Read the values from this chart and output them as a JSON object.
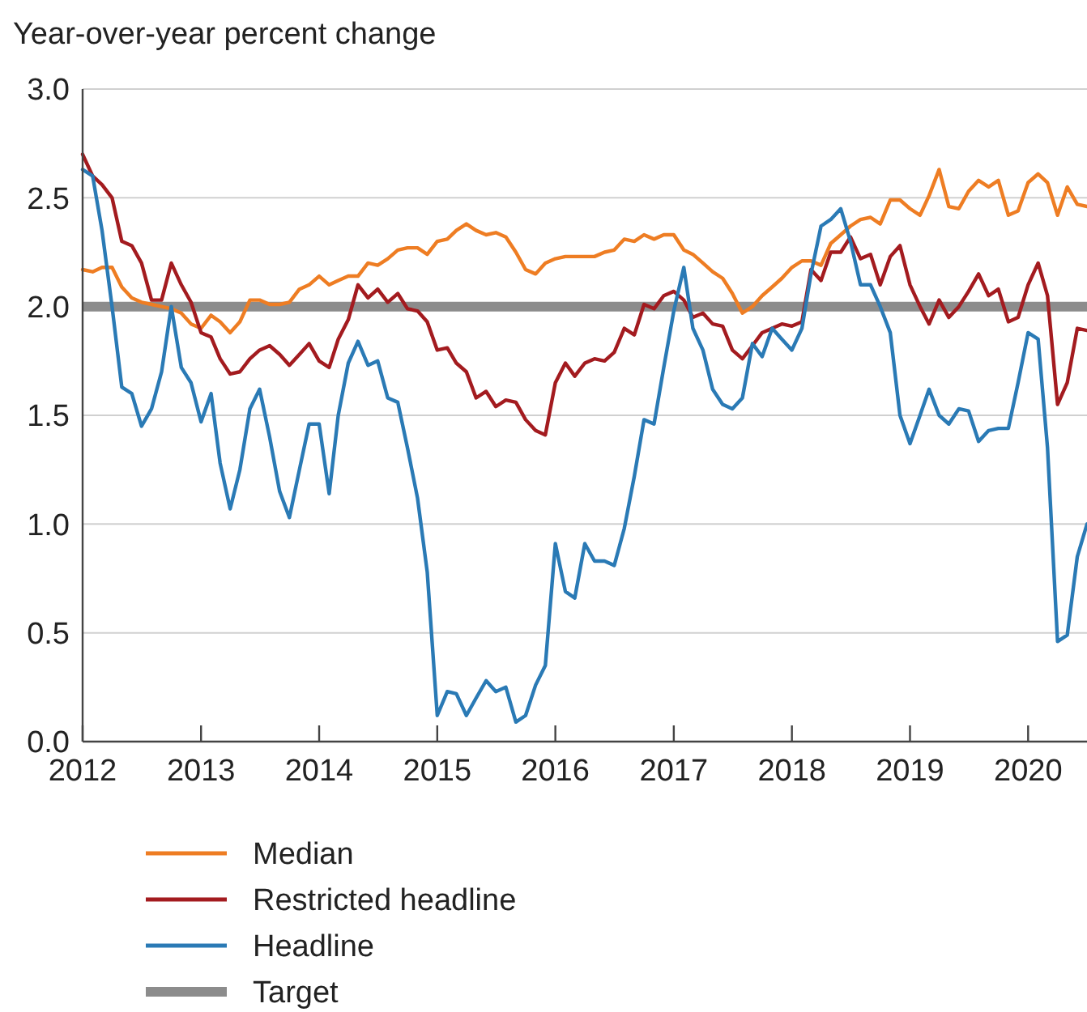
{
  "chart_data": {
    "type": "line",
    "ylabel": "Year-over-year percent change",
    "x": [
      "2012-01",
      "2012-02",
      "2012-03",
      "2012-04",
      "2012-05",
      "2012-06",
      "2012-07",
      "2012-08",
      "2012-09",
      "2012-10",
      "2012-11",
      "2012-12",
      "2013-01",
      "2013-02",
      "2013-03",
      "2013-04",
      "2013-05",
      "2013-06",
      "2013-07",
      "2013-08",
      "2013-09",
      "2013-10",
      "2013-11",
      "2013-12",
      "2014-01",
      "2014-02",
      "2014-03",
      "2014-04",
      "2014-05",
      "2014-06",
      "2014-07",
      "2014-08",
      "2014-09",
      "2014-10",
      "2014-11",
      "2014-12",
      "2015-01",
      "2015-02",
      "2015-03",
      "2015-04",
      "2015-05",
      "2015-06",
      "2015-07",
      "2015-08",
      "2015-09",
      "2015-10",
      "2015-11",
      "2015-12",
      "2016-01",
      "2016-02",
      "2016-03",
      "2016-04",
      "2016-05",
      "2016-06",
      "2016-07",
      "2016-08",
      "2016-09",
      "2016-10",
      "2016-11",
      "2016-12",
      "2017-01",
      "2017-02",
      "2017-03",
      "2017-04",
      "2017-05",
      "2017-06",
      "2017-07",
      "2017-08",
      "2017-09",
      "2017-10",
      "2017-11",
      "2017-12",
      "2018-01",
      "2018-02",
      "2018-03",
      "2018-04",
      "2018-05",
      "2018-06",
      "2018-07",
      "2018-08",
      "2018-09",
      "2018-10",
      "2018-11",
      "2018-12",
      "2019-01",
      "2019-02",
      "2019-03",
      "2019-04",
      "2019-05",
      "2019-06",
      "2019-07",
      "2019-08",
      "2019-09",
      "2019-10",
      "2019-11",
      "2019-12",
      "2020-01",
      "2020-02",
      "2020-03",
      "2020-04",
      "2020-05",
      "2020-06",
      "2020-07"
    ],
    "series": [
      {
        "name": "Median",
        "color": "#ee7d23",
        "values": [
          2.17,
          2.16,
          2.18,
          2.18,
          2.09,
          2.04,
          2.02,
          2.01,
          2.0,
          1.99,
          1.97,
          1.92,
          1.9,
          1.96,
          1.93,
          1.88,
          1.93,
          2.03,
          2.03,
          2.01,
          2.01,
          2.02,
          2.08,
          2.1,
          2.14,
          2.1,
          2.12,
          2.14,
          2.14,
          2.2,
          2.19,
          2.22,
          2.26,
          2.27,
          2.27,
          2.24,
          2.3,
          2.31,
          2.35,
          2.38,
          2.35,
          2.33,
          2.34,
          2.32,
          2.25,
          2.17,
          2.15,
          2.2,
          2.22,
          2.23,
          2.23,
          2.23,
          2.23,
          2.25,
          2.26,
          2.31,
          2.3,
          2.33,
          2.31,
          2.33,
          2.33,
          2.26,
          2.24,
          2.2,
          2.16,
          2.13,
          2.06,
          1.97,
          2.0,
          2.05,
          2.09,
          2.13,
          2.18,
          2.21,
          2.21,
          2.19,
          2.29,
          2.33,
          2.37,
          2.4,
          2.41,
          2.38,
          2.49,
          2.49,
          2.45,
          2.42,
          2.51,
          2.63,
          2.46,
          2.45,
          2.53,
          2.58,
          2.55,
          2.58,
          2.42,
          2.44,
          2.57,
          2.61,
          2.57,
          2.42,
          2.55,
          2.47,
          2.46
        ]
      },
      {
        "name": "Restricted headline",
        "color": "#a31b1f",
        "values": [
          2.7,
          2.6,
          2.56,
          2.5,
          2.3,
          2.28,
          2.2,
          2.03,
          2.03,
          2.2,
          2.1,
          2.02,
          1.88,
          1.86,
          1.76,
          1.69,
          1.7,
          1.76,
          1.8,
          1.82,
          1.78,
          1.73,
          1.78,
          1.83,
          1.75,
          1.72,
          1.85,
          1.94,
          2.1,
          2.04,
          2.08,
          2.02,
          2.06,
          1.99,
          1.98,
          1.93,
          1.8,
          1.81,
          1.74,
          1.7,
          1.58,
          1.61,
          1.54,
          1.57,
          1.56,
          1.48,
          1.43,
          1.41,
          1.65,
          1.74,
          1.68,
          1.74,
          1.76,
          1.75,
          1.79,
          1.9,
          1.87,
          2.01,
          1.99,
          2.05,
          2.07,
          2.03,
          1.95,
          1.97,
          1.92,
          1.91,
          1.8,
          1.76,
          1.82,
          1.88,
          1.9,
          1.92,
          1.91,
          1.93,
          2.17,
          2.12,
          2.25,
          2.25,
          2.32,
          2.22,
          2.24,
          2.1,
          2.23,
          2.28,
          2.1,
          2.0,
          1.92,
          2.03,
          1.95,
          2.0,
          2.07,
          2.15,
          2.05,
          2.08,
          1.93,
          1.95,
          2.1,
          2.2,
          2.05,
          1.55,
          1.65,
          1.9,
          1.89
        ]
      },
      {
        "name": "Headline",
        "color": "#2a7ab5",
        "values": [
          2.63,
          2.6,
          2.35,
          2.0,
          1.63,
          1.6,
          1.45,
          1.53,
          1.7,
          2.0,
          1.72,
          1.65,
          1.47,
          1.6,
          1.28,
          1.07,
          1.25,
          1.53,
          1.62,
          1.4,
          1.15,
          1.03,
          1.25,
          1.46,
          1.46,
          1.14,
          1.5,
          1.74,
          1.84,
          1.73,
          1.75,
          1.58,
          1.56,
          1.35,
          1.12,
          0.78,
          0.12,
          0.23,
          0.22,
          0.12,
          0.2,
          0.28,
          0.23,
          0.25,
          0.09,
          0.12,
          0.26,
          0.35,
          0.91,
          0.69,
          0.66,
          0.91,
          0.83,
          0.83,
          0.81,
          0.98,
          1.22,
          1.48,
          1.46,
          1.72,
          1.98,
          2.18,
          1.9,
          1.8,
          1.62,
          1.55,
          1.53,
          1.58,
          1.83,
          1.77,
          1.9,
          1.85,
          1.8,
          1.9,
          2.15,
          2.37,
          2.4,
          2.45,
          2.3,
          2.1,
          2.1,
          2.0,
          1.88,
          1.5,
          1.37,
          1.5,
          1.62,
          1.5,
          1.46,
          1.53,
          1.52,
          1.38,
          1.43,
          1.44,
          1.44,
          1.65,
          1.88,
          1.85,
          1.35,
          0.46,
          0.49,
          0.85,
          1.0
        ]
      }
    ],
    "ref_lines": [
      {
        "axis": "y",
        "value": 2,
        "label": "Target",
        "color": "#8c8c8c"
      }
    ],
    "xlim": [
      "2012-01",
      "2020-07"
    ],
    "xticks": [
      "2012",
      "2013",
      "2014",
      "2015",
      "2016",
      "2017",
      "2018",
      "2019",
      "2020"
    ],
    "ylim": [
      0,
      3
    ],
    "yticks": [
      {
        "value": 0,
        "label": "0.0"
      },
      {
        "value": 0.5,
        "label": "0.5"
      },
      {
        "value": 1,
        "label": "1.0"
      },
      {
        "value": 1.5,
        "label": "1.5"
      },
      {
        "value": 2,
        "label": "2.0"
      },
      {
        "value": 2.5,
        "label": "2.5"
      },
      {
        "value": 3,
        "label": "3.0"
      }
    ],
    "grid": "y",
    "legend": "bottom",
    "line_style": "solid",
    "marker": "none"
  }
}
